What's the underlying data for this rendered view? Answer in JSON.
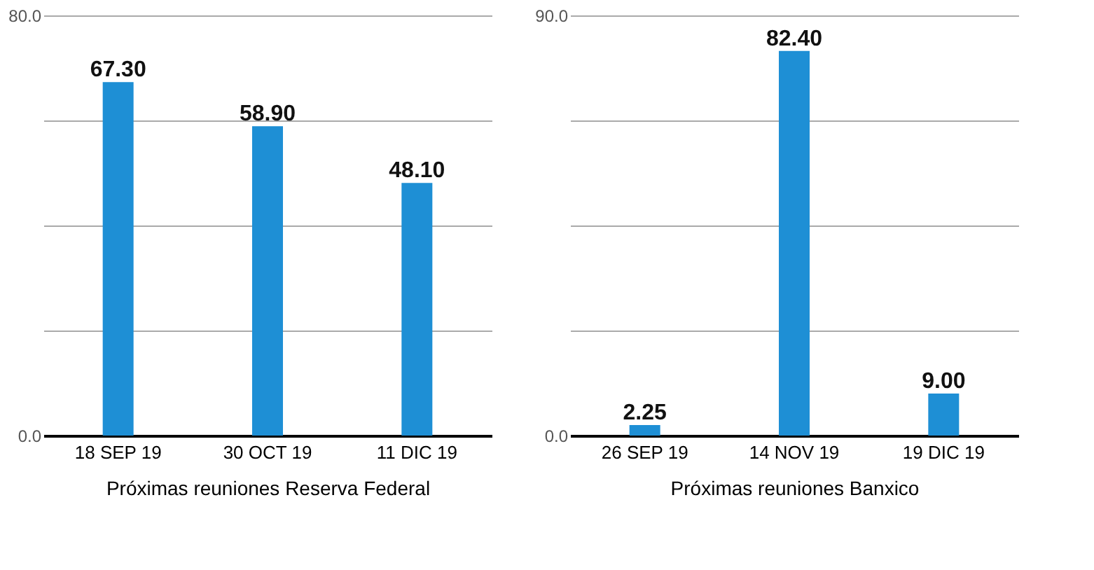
{
  "chart_data": [
    {
      "type": "bar",
      "categories": [
        "18 SEP 19",
        "30 OCT 19",
        "11 DIC 19"
      ],
      "values": [
        67.3,
        58.9,
        48.1
      ],
      "value_labels": [
        "67.30",
        "58.90",
        "48.10"
      ],
      "color": "#1e8fd5",
      "xlabel": "Próximas reuniones Reserva Federal",
      "ylim": [
        0,
        80
      ],
      "yticks": [
        {
          "value": 0,
          "label": "0.0"
        },
        {
          "value": 20,
          "label": null
        },
        {
          "value": 40,
          "label": null
        },
        {
          "value": 60,
          "label": null
        },
        {
          "value": 80,
          "label": "80.0"
        }
      ],
      "grid": "y"
    },
    {
      "type": "bar",
      "categories": [
        "26 SEP 19",
        "14 NOV 19",
        "19 DIC 19"
      ],
      "values": [
        2.25,
        82.4,
        9.0
      ],
      "value_labels": [
        "2.25",
        "82.40",
        "9.00"
      ],
      "color": "#1e8fd5",
      "xlabel": "Próximas reuniones Banxico",
      "ylim": [
        0,
        90
      ],
      "yticks": [
        {
          "value": 0,
          "label": "0.0"
        },
        {
          "value": 22.5,
          "label": null
        },
        {
          "value": 45,
          "label": null
        },
        {
          "value": 67.5,
          "label": null
        },
        {
          "value": 90,
          "label": "90.0"
        }
      ],
      "grid": "y"
    }
  ]
}
